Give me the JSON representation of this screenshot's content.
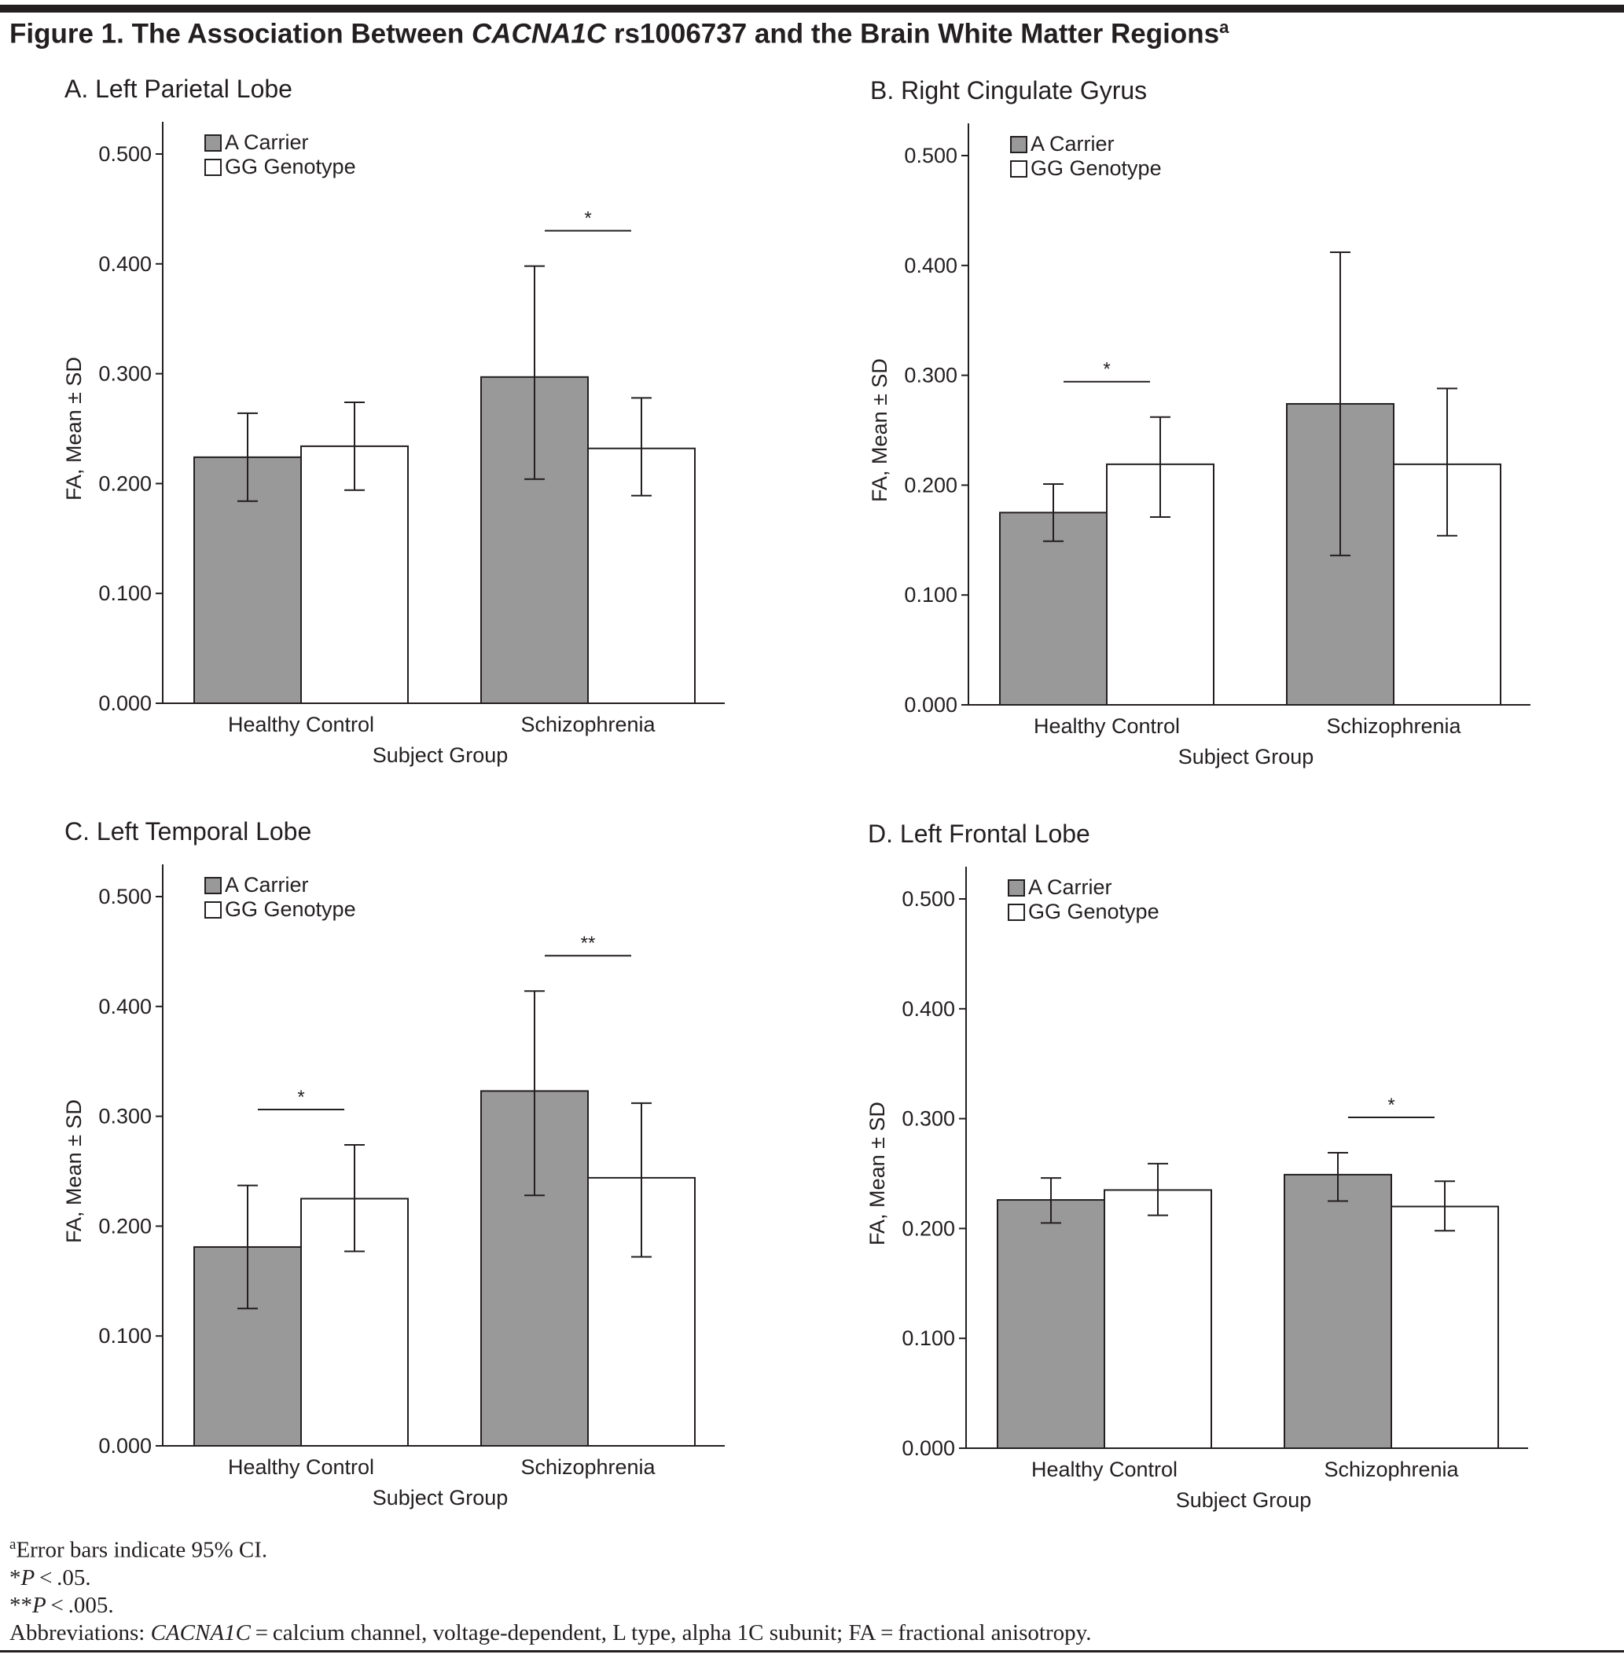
{
  "figure": {
    "title_prefix": "Figure 1. The Association Between ",
    "title_gene": "CACNA1C",
    "title_suffix": " rs1006737 and the Brain White Matter Regions",
    "title_superscript": "a"
  },
  "colors": {
    "a_carrier": "#9a9999",
    "gg_genotype": "#ffffff",
    "ink": "#231f20"
  },
  "chart_data": [
    {
      "type": "bar",
      "title": "A. Left Parietal Lobe",
      "categories": [
        "Healthy Control",
        "Schizophrenia"
      ],
      "xlabel": "Subject Group",
      "ylabel": "FA, Mean ± SD",
      "ylim": [
        0,
        0.5
      ],
      "yticks": [
        "0.000",
        "0.100",
        "0.200",
        "0.300",
        "0.400",
        "0.500"
      ],
      "legend": {
        "position": "top-left",
        "entries": [
          "A Carrier",
          "GG Genotype"
        ]
      },
      "series": [
        {
          "name": "A Carrier",
          "values": [
            0.224,
            0.297
          ],
          "ci_low": [
            0.184,
            0.204
          ],
          "ci_high": [
            0.264,
            0.398
          ]
        },
        {
          "name": "GG Genotype",
          "values": [
            0.234,
            0.232
          ],
          "ci_low": [
            0.194,
            0.189
          ],
          "ci_high": [
            0.274,
            0.278
          ]
        }
      ],
      "significance": [
        {
          "category": "Schizophrenia",
          "label": "*"
        }
      ]
    },
    {
      "type": "bar",
      "title": "B. Right Cingulate Gyrus",
      "categories": [
        "Healthy Control",
        "Schizophrenia"
      ],
      "xlabel": "Subject Group",
      "ylabel": "FA, Mean ± SD",
      "ylim": [
        0,
        0.5
      ],
      "yticks": [
        "0.000",
        "0.100",
        "0.200",
        "0.300",
        "0.400",
        "0.500"
      ],
      "legend": {
        "position": "top-left",
        "entries": [
          "A Carrier",
          "GG Genotype"
        ]
      },
      "series": [
        {
          "name": "A Carrier",
          "values": [
            0.175,
            0.274
          ],
          "ci_low": [
            0.149,
            0.136
          ],
          "ci_high": [
            0.201,
            0.412
          ]
        },
        {
          "name": "GG Genotype",
          "values": [
            0.219,
            0.219
          ],
          "ci_low": [
            0.171,
            0.154
          ],
          "ci_high": [
            0.262,
            0.288
          ]
        }
      ],
      "significance": [
        {
          "category": "Healthy Control",
          "label": "*"
        }
      ]
    },
    {
      "type": "bar",
      "title": "C. Left Temporal Lobe",
      "categories": [
        "Healthy Control",
        "Schizophrenia"
      ],
      "xlabel": "Subject Group",
      "ylabel": "FA, Mean ± SD",
      "ylim": [
        0,
        0.5
      ],
      "yticks": [
        "0.000",
        "0.100",
        "0.200",
        "0.300",
        "0.400",
        "0.500"
      ],
      "legend": {
        "position": "top-left",
        "entries": [
          "A Carrier",
          "GG Genotype"
        ]
      },
      "series": [
        {
          "name": "A Carrier",
          "values": [
            0.181,
            0.323
          ],
          "ci_low": [
            0.125,
            0.228
          ],
          "ci_high": [
            0.237,
            0.414
          ]
        },
        {
          "name": "GG Genotype",
          "values": [
            0.225,
            0.244
          ],
          "ci_low": [
            0.177,
            0.172
          ],
          "ci_high": [
            0.274,
            0.312
          ]
        }
      ],
      "significance": [
        {
          "category": "Healthy Control",
          "label": "*"
        },
        {
          "category": "Schizophrenia",
          "label": "**"
        }
      ]
    },
    {
      "type": "bar",
      "title": "D. Left Frontal Lobe",
      "categories": [
        "Healthy Control",
        "Schizophrenia"
      ],
      "xlabel": "Subject Group",
      "ylabel": "FA, Mean ± SD",
      "ylim": [
        0,
        0.5
      ],
      "yticks": [
        "0.000",
        "0.100",
        "0.200",
        "0.300",
        "0.400",
        "0.500"
      ],
      "legend": {
        "position": "top-left",
        "entries": [
          "A Carrier",
          "GG Genotype"
        ]
      },
      "series": [
        {
          "name": "A Carrier",
          "values": [
            0.226,
            0.249
          ],
          "ci_low": [
            0.205,
            0.225
          ],
          "ci_high": [
            0.246,
            0.269
          ]
        },
        {
          "name": "GG Genotype",
          "values": [
            0.235,
            0.22
          ],
          "ci_low": [
            0.212,
            0.198
          ],
          "ci_high": [
            0.259,
            0.243
          ]
        }
      ],
      "significance": [
        {
          "category": "Schizophrenia",
          "label": "*"
        }
      ]
    }
  ],
  "footnotes": {
    "a_marker": "a",
    "a_text": "Error bars indicate 95% CI.",
    "p05_stars": "*",
    "p05_p": "P",
    "p05_rest": " < .05.",
    "p005_stars": "**",
    "p005_p": "P",
    "p005_rest": " < .005.",
    "abbrev_prefix": "Abbreviations: ",
    "abbrev_gene": "CACNA1C",
    "abbrev_rest": " = calcium channel, voltage-dependent, L type, alpha 1C subunit; FA = fractional anisotropy."
  }
}
